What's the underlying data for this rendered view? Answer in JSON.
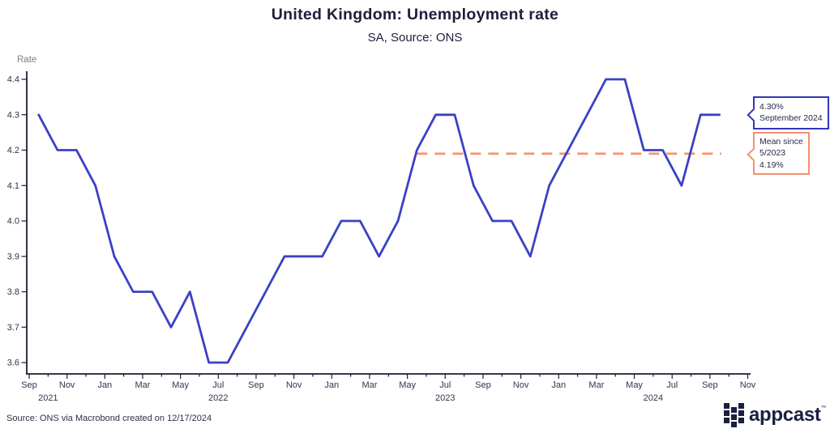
{
  "chart_data": {
    "type": "line",
    "title": "United Kingdom: Unemployment rate",
    "subtitle": "SA, Source: ONS",
    "ylabel": "Rate",
    "xlabel": "",
    "ylim": [
      3.57,
      4.42
    ],
    "yticks": [
      3.6,
      3.7,
      3.8,
      3.9,
      4.0,
      4.1,
      4.2,
      4.3,
      4.4
    ],
    "grid": false,
    "legend": "none",
    "x_start_month": "Sep 2021",
    "x_end_month": "Nov 2024",
    "x_tick_labels": [
      "Sep",
      "Nov",
      "Jan",
      "Mar",
      "May",
      "Jul",
      "Sep",
      "Nov",
      "Jan",
      "Mar",
      "May",
      "Jul",
      "Sep",
      "Nov",
      "Jan",
      "Mar",
      "May",
      "Jul",
      "Sep",
      "Nov"
    ],
    "year_labels": [
      {
        "label": "2021",
        "month_index": 1
      },
      {
        "label": "2022",
        "month_index": 10
      },
      {
        "label": "2023",
        "month_index": 22
      },
      {
        "label": "2024",
        "month_index": 33
      }
    ],
    "series": [
      {
        "name": "United Kingdom unemployment rate (SA)",
        "color": "#3a41c6",
        "months": [
          "2021-09",
          "2021-10",
          "2021-11",
          "2021-12",
          "2022-01",
          "2022-02",
          "2022-03",
          "2022-04",
          "2022-05",
          "2022-06",
          "2022-07",
          "2022-08",
          "2022-09",
          "2022-10",
          "2022-11",
          "2022-12",
          "2023-01",
          "2023-02",
          "2023-03",
          "2023-04",
          "2023-05",
          "2023-06",
          "2023-07",
          "2023-08",
          "2023-09",
          "2023-10",
          "2023-11",
          "2023-12",
          "2024-01",
          "2024-02",
          "2024-03",
          "2024-04",
          "2024-05",
          "2024-06",
          "2024-07",
          "2024-08",
          "2024-09"
        ],
        "values": [
          4.3,
          4.2,
          4.2,
          4.1,
          3.9,
          3.8,
          3.8,
          3.7,
          3.8,
          3.6,
          3.6,
          3.7,
          3.8,
          3.9,
          3.9,
          3.9,
          4.0,
          4.0,
          3.9,
          4.0,
          4.2,
          4.3,
          4.3,
          4.1,
          4.0,
          4.0,
          3.9,
          4.1,
          4.2,
          4.3,
          4.4,
          4.4,
          4.2,
          4.2,
          4.1,
          4.3,
          4.3
        ]
      }
    ],
    "mean_line": {
      "label": "Mean since 5/2023",
      "value": 4.19,
      "start_month": "2023-05",
      "start_index": 20,
      "color": "#f9906e",
      "style": "dashed"
    }
  },
  "callouts": {
    "latest": {
      "lines": [
        "4.30%",
        "September 2024"
      ],
      "border_color": "#3136bb"
    },
    "mean": {
      "lines": [
        "Mean since",
        "5/2023",
        "4.19%"
      ],
      "border_color": "#f78f6d"
    }
  },
  "footer": {
    "source": "Source: ONS via Macrobond created on 12/17/2024"
  },
  "branding": {
    "logo_text": "appcast",
    "trademark": "™"
  },
  "colors": {
    "line": "#3a41c6",
    "mean": "#f9906e",
    "axis": "#1c1d33",
    "tick_text": "#32344d",
    "title_text": "#1c1f3d",
    "muted_text": "#7d7d84"
  }
}
